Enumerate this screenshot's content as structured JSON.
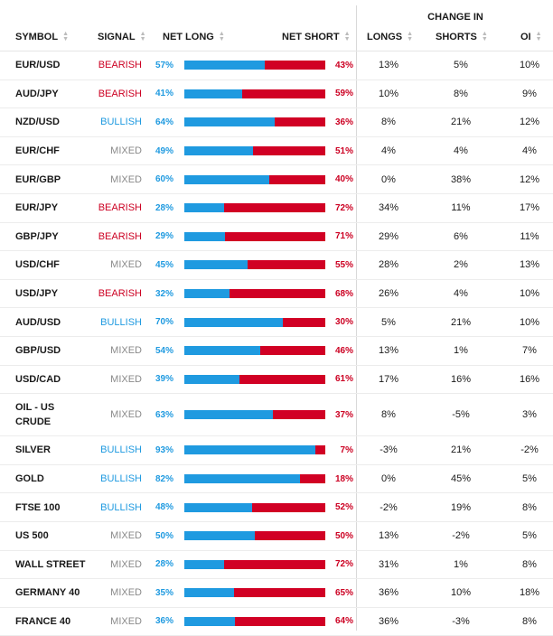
{
  "headers": {
    "group": "CHANGE IN",
    "symbol": "SYMBOL",
    "signal": "SIGNAL",
    "net_long": "NET LONG",
    "net_short": "NET SHORT",
    "longs": "LONGS",
    "shorts": "SHORTS",
    "oi": "OI"
  },
  "colors": {
    "bearish": "#cc0022",
    "bullish": "#1f9ae0",
    "mixed": "#8a8a8a",
    "long_bar": "#1f9ae0",
    "short_bar": "#d10024"
  },
  "rows": [
    {
      "symbol": "EUR/USD",
      "signal": "BEARISH",
      "net_long": "57%",
      "net_short": "43%",
      "longs": "13%",
      "shorts": "5%",
      "oi": "10%"
    },
    {
      "symbol": "AUD/JPY",
      "signal": "BEARISH",
      "net_long": "41%",
      "net_short": "59%",
      "longs": "10%",
      "shorts": "8%",
      "oi": "9%"
    },
    {
      "symbol": "NZD/USD",
      "signal": "BULLISH",
      "net_long": "64%",
      "net_short": "36%",
      "longs": "8%",
      "shorts": "21%",
      "oi": "12%"
    },
    {
      "symbol": "EUR/CHF",
      "signal": "MIXED",
      "net_long": "49%",
      "net_short": "51%",
      "longs": "4%",
      "shorts": "4%",
      "oi": "4%"
    },
    {
      "symbol": "EUR/GBP",
      "signal": "MIXED",
      "net_long": "60%",
      "net_short": "40%",
      "longs": "0%",
      "shorts": "38%",
      "oi": "12%"
    },
    {
      "symbol": "EUR/JPY",
      "signal": "BEARISH",
      "net_long": "28%",
      "net_short": "72%",
      "longs": "34%",
      "shorts": "11%",
      "oi": "17%"
    },
    {
      "symbol": "GBP/JPY",
      "signal": "BEARISH",
      "net_long": "29%",
      "net_short": "71%",
      "longs": "29%",
      "shorts": "6%",
      "oi": "11%"
    },
    {
      "symbol": "USD/CHF",
      "signal": "MIXED",
      "net_long": "45%",
      "net_short": "55%",
      "longs": "28%",
      "shorts": "2%",
      "oi": "13%"
    },
    {
      "symbol": "USD/JPY",
      "signal": "BEARISH",
      "net_long": "32%",
      "net_short": "68%",
      "longs": "26%",
      "shorts": "4%",
      "oi": "10%"
    },
    {
      "symbol": "AUD/USD",
      "signal": "BULLISH",
      "net_long": "70%",
      "net_short": "30%",
      "longs": "5%",
      "shorts": "21%",
      "oi": "10%"
    },
    {
      "symbol": "GBP/USD",
      "signal": "MIXED",
      "net_long": "54%",
      "net_short": "46%",
      "longs": "13%",
      "shorts": "1%",
      "oi": "7%"
    },
    {
      "symbol": "USD/CAD",
      "signal": "MIXED",
      "net_long": "39%",
      "net_short": "61%",
      "longs": "17%",
      "shorts": "16%",
      "oi": "16%"
    },
    {
      "symbol": "OIL - US CRUDE",
      "signal": "MIXED",
      "net_long": "63%",
      "net_short": "37%",
      "longs": "8%",
      "shorts": "-5%",
      "oi": "3%"
    },
    {
      "symbol": "SILVER",
      "signal": "BULLISH",
      "net_long": "93%",
      "net_short": "7%",
      "longs": "-3%",
      "shorts": "21%",
      "oi": "-2%"
    },
    {
      "symbol": "GOLD",
      "signal": "BULLISH",
      "net_long": "82%",
      "net_short": "18%",
      "longs": "0%",
      "shorts": "45%",
      "oi": "5%"
    },
    {
      "symbol": "FTSE 100",
      "signal": "BULLISH",
      "net_long": "48%",
      "net_short": "52%",
      "longs": "-2%",
      "shorts": "19%",
      "oi": "8%"
    },
    {
      "symbol": "US 500",
      "signal": "MIXED",
      "net_long": "50%",
      "net_short": "50%",
      "longs": "13%",
      "shorts": "-2%",
      "oi": "5%"
    },
    {
      "symbol": "WALL STREET",
      "signal": "MIXED",
      "net_long": "28%",
      "net_short": "72%",
      "longs": "31%",
      "shorts": "1%",
      "oi": "8%"
    },
    {
      "symbol": "GERMANY 40",
      "signal": "MIXED",
      "net_long": "35%",
      "net_short": "65%",
      "longs": "36%",
      "shorts": "10%",
      "oi": "18%"
    },
    {
      "symbol": "FRANCE 40",
      "signal": "MIXED",
      "net_long": "36%",
      "net_short": "64%",
      "longs": "36%",
      "shorts": "-3%",
      "oi": "8%"
    }
  ]
}
